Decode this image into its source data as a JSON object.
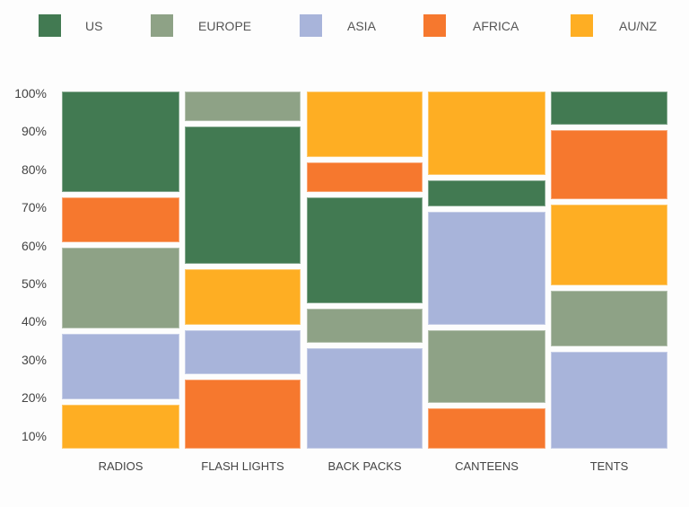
{
  "chart_data": {
    "type": "marimekko",
    "title": "",
    "xlabel": "",
    "ylabel": "",
    "ylim": [
      0,
      100
    ],
    "y_ticks": [
      "100%",
      "90%",
      "80%",
      "70%",
      "60%",
      "50%",
      "40%",
      "30%",
      "20%",
      "10%"
    ],
    "legend_position": "top",
    "legend": [
      {
        "name": "US",
        "color": "#427a52"
      },
      {
        "name": "EUROPE",
        "color": "#8ea286"
      },
      {
        "name": "ASIA",
        "color": "#a8b4da"
      },
      {
        "name": "AFRICA",
        "color": "#f6782e"
      },
      {
        "name": "AU/NZ",
        "color": "#feae23"
      }
    ],
    "categories": [
      "RADIOS",
      "FLASH LIGHTS",
      "BACK PACKS",
      "CANTEENS",
      "TENTS"
    ],
    "stack_order_top_to_bottom": [
      [
        "US",
        "AFRICA",
        "EUROPE",
        "ASIA",
        "AU/NZ"
      ],
      [
        "EUROPE",
        "US",
        "AU/NZ",
        "ASIA",
        "AFRICA"
      ],
      [
        "AU/NZ",
        "AFRICA",
        "US",
        "EUROPE",
        "ASIA"
      ],
      [
        "AU/NZ",
        "US",
        "ASIA",
        "EUROPE",
        "AFRICA"
      ],
      [
        "US",
        "AFRICA",
        "AU/NZ",
        "EUROPE",
        "ASIA"
      ]
    ],
    "series": [
      {
        "name": "US",
        "values": [
          29,
          40,
          31,
          9,
          10
        ]
      },
      {
        "name": "EUROPE",
        "values": [
          24,
          9,
          11,
          22,
          17
        ]
      },
      {
        "name": "ASIA",
        "values": [
          20,
          14,
          29,
          33,
          28
        ]
      },
      {
        "name": "AFRICA",
        "values": [
          14,
          20,
          10,
          12,
          21
        ]
      },
      {
        "name": "AU/NZ",
        "values": [
          13,
          17,
          19,
          24,
          24
        ]
      }
    ]
  }
}
